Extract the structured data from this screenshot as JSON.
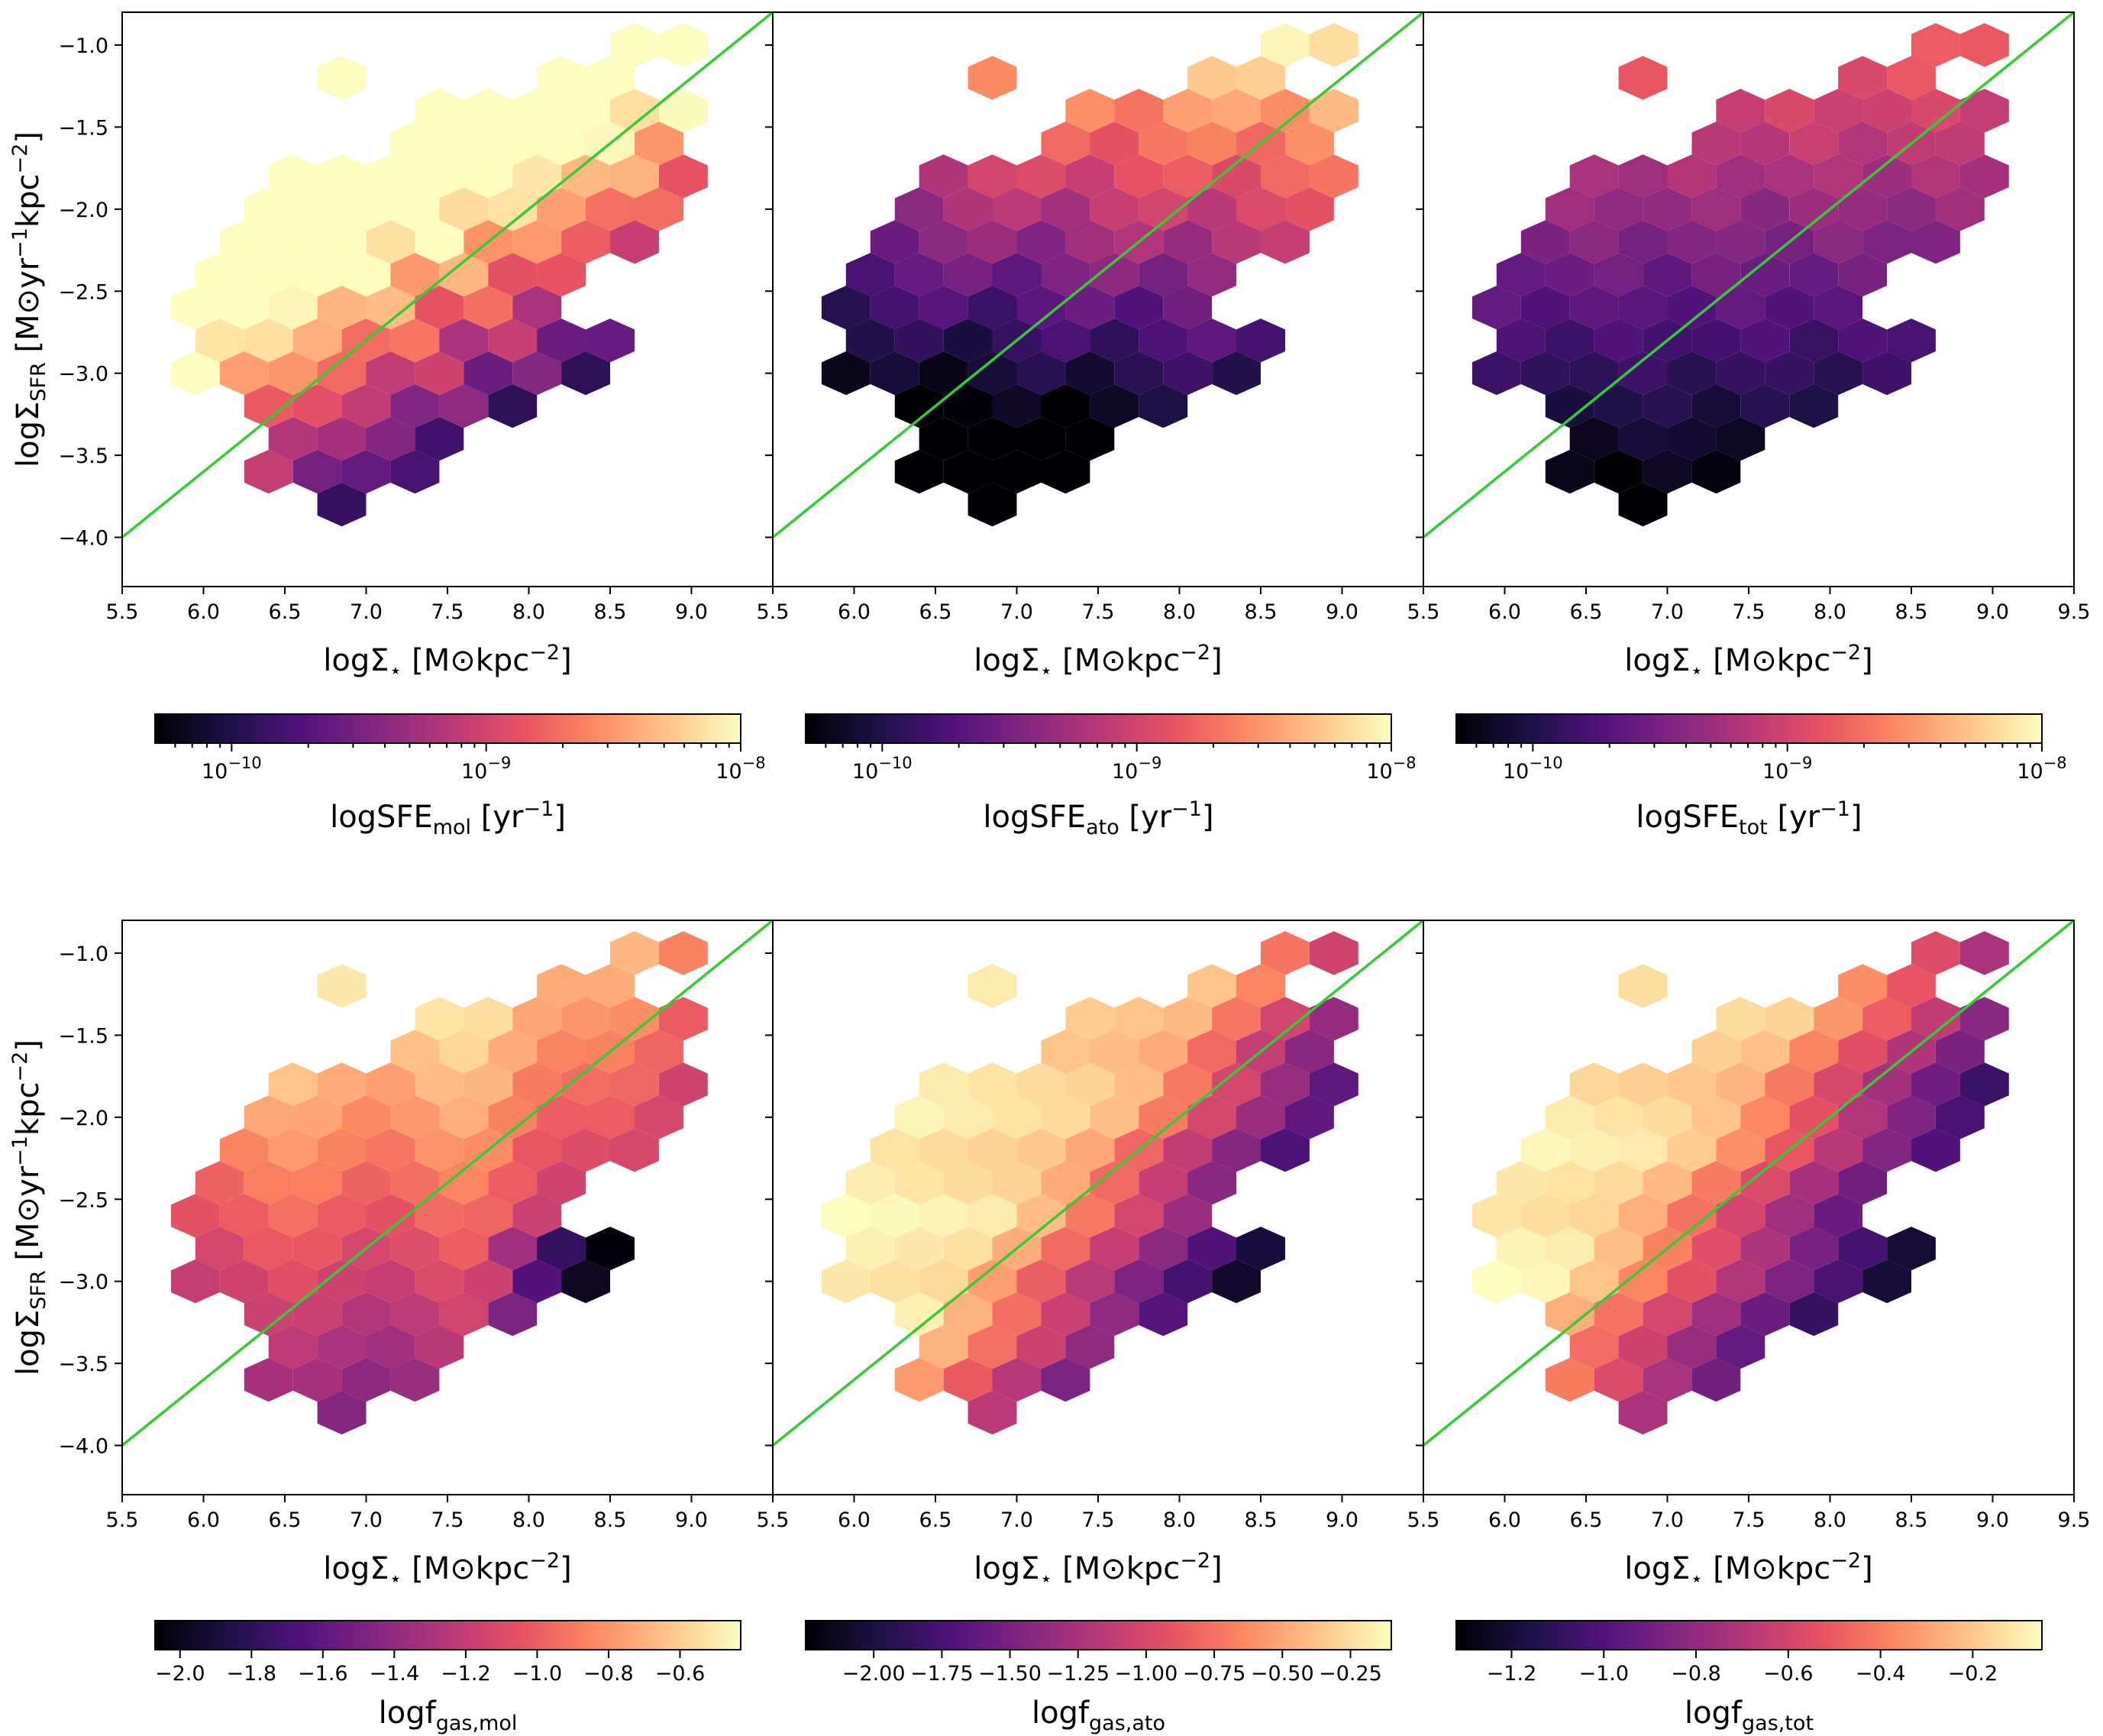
{
  "chart_data": [
    {
      "type": "heatmap",
      "subtype": "hexbin",
      "panel": "top-left",
      "xlabel": "logΣ⋆ [M⊙kpc−2]",
      "ylabel": "logΣSFR [M⊙yr−1kpc−2]",
      "xlim": [
        5.5,
        9.5
      ],
      "ylim": [
        -4.3,
        -0.8
      ],
      "xticks": [
        "5.5",
        "6.0",
        "6.5",
        "7.0",
        "7.5",
        "8.0",
        "8.5",
        "9.0"
      ],
      "yticks": [
        "−1.0",
        "−1.5",
        "−2.0",
        "−2.5",
        "−3.0",
        "−3.5",
        "−4.0"
      ],
      "line": {
        "x": [
          5.5,
          9.5
        ],
        "y": [
          -4.0,
          -0.8
        ],
        "color": "#33cc33"
      },
      "colorbar": {
        "label": "logSFEmol [yr−1]",
        "scale": "log",
        "range": [
          5e-11,
          1e-08
        ],
        "ticks": [
          "10−10",
          "10−9",
          "10−8"
        ]
      }
    },
    {
      "type": "heatmap",
      "subtype": "hexbin",
      "panel": "top-middle",
      "xlabel": "logΣ⋆ [M⊙kpc−2]",
      "xlim": [
        5.5,
        9.5
      ],
      "ylim": [
        -4.3,
        -0.8
      ],
      "xticks": [
        "5.5",
        "6.0",
        "6.5",
        "7.0",
        "7.5",
        "8.0",
        "8.5",
        "9.0"
      ],
      "line": {
        "x": [
          5.5,
          9.5
        ],
        "y": [
          -4.0,
          -0.8
        ],
        "color": "#33cc33"
      },
      "colorbar": {
        "label": "logSFEato [yr−1]",
        "scale": "log",
        "range": [
          5e-11,
          1e-08
        ],
        "ticks": [
          "10−10",
          "10−9",
          "10−8"
        ]
      }
    },
    {
      "type": "heatmap",
      "subtype": "hexbin",
      "panel": "top-right",
      "xlabel": "logΣ⋆ [M⊙kpc−2]",
      "xlim": [
        5.5,
        9.5
      ],
      "ylim": [
        -4.3,
        -0.8
      ],
      "xticks": [
        "5.5",
        "6.0",
        "6.5",
        "7.0",
        "7.5",
        "8.0",
        "8.5",
        "9.0",
        "9.5"
      ],
      "line": {
        "x": [
          5.5,
          9.5
        ],
        "y": [
          -4.0,
          -0.8
        ],
        "color": "#33cc33"
      },
      "colorbar": {
        "label": "logSFEtot [yr−1]",
        "scale": "log",
        "range": [
          5e-11,
          1e-08
        ],
        "ticks": [
          "10−10",
          "10−9",
          "10−8"
        ]
      }
    },
    {
      "type": "heatmap",
      "subtype": "hexbin",
      "panel": "bottom-left",
      "xlabel": "logΣ⋆ [M⊙kpc−2]",
      "ylabel": "logΣSFR [M⊙yr−1kpc−2]",
      "xlim": [
        5.5,
        9.5
      ],
      "ylim": [
        -4.3,
        -0.8
      ],
      "xticks": [
        "5.5",
        "6.0",
        "6.5",
        "7.0",
        "7.5",
        "8.0",
        "8.5",
        "9.0"
      ],
      "yticks": [
        "−1.0",
        "−1.5",
        "−2.0",
        "−2.5",
        "−3.0",
        "−3.5",
        "−4.0"
      ],
      "line": {
        "x": [
          5.5,
          9.5
        ],
        "y": [
          -4.0,
          -0.8
        ],
        "color": "#33cc33"
      },
      "colorbar": {
        "label": "logfgas,mol",
        "scale": "linear",
        "range": [
          -2.07,
          -0.43
        ],
        "ticks": [
          "−2.0",
          "−1.8",
          "−1.6",
          "−1.4",
          "−1.2",
          "−1.0",
          "−0.8",
          "−0.6"
        ]
      }
    },
    {
      "type": "heatmap",
      "subtype": "hexbin",
      "panel": "bottom-middle",
      "xlabel": "logΣ⋆ [M⊙kpc−2]",
      "xlim": [
        5.5,
        9.5
      ],
      "ylim": [
        -4.3,
        -0.8
      ],
      "xticks": [
        "5.5",
        "6.0",
        "6.5",
        "7.0",
        "7.5",
        "8.0",
        "8.5",
        "9.0"
      ],
      "line": {
        "x": [
          5.5,
          9.5
        ],
        "y": [
          -4.0,
          -0.8
        ],
        "color": "#33cc33"
      },
      "colorbar": {
        "label": "logfgas,ato",
        "scale": "linear",
        "range": [
          -2.25,
          -0.1
        ],
        "ticks": [
          "−2.00",
          "−1.75",
          "−1.50",
          "−1.25",
          "−1.00",
          "−0.75",
          "−0.50",
          "−0.25"
        ]
      }
    },
    {
      "type": "heatmap",
      "subtype": "hexbin",
      "panel": "bottom-right",
      "xlabel": "logΣ⋆ [M⊙kpc−2]",
      "xlim": [
        5.5,
        9.5
      ],
      "ylim": [
        -4.3,
        -0.8
      ],
      "xticks": [
        "5.5",
        "6.0",
        "6.5",
        "7.0",
        "7.5",
        "8.0",
        "8.5",
        "9.0",
        "9.5"
      ],
      "line": {
        "x": [
          5.5,
          9.5
        ],
        "y": [
          -4.0,
          -0.8
        ],
        "color": "#33cc33"
      },
      "colorbar": {
        "label": "logfgas,tot",
        "scale": "linear",
        "range": [
          -1.32,
          -0.05
        ],
        "ticks": [
          "−1.2",
          "−1.0",
          "−0.8",
          "−0.6",
          "−0.4",
          "−0.2"
        ]
      }
    }
  ],
  "hex_grid": {
    "hex_width": 0.3,
    "row_step": 0.2,
    "y_start": -3.8,
    "x_even_start": 6.85,
    "x_odd_start": 6.7,
    "rows": [
      {
        "y": -3.8,
        "x_min": 6.85,
        "x_max": 6.85
      },
      {
        "y": -3.6,
        "x_min": 6.4,
        "x_max": 7.3
      },
      {
        "y": -3.4,
        "x_min": 6.55,
        "x_max": 7.45
      },
      {
        "y": -3.2,
        "x_min": 6.4,
        "x_max": 7.9
      },
      {
        "y": -3.0,
        "x_min": 5.95,
        "x_max": 8.35
      },
      {
        "y": -2.8,
        "x_min": 6.1,
        "x_max": 8.5
      },
      {
        "y": -2.6,
        "x_min": 5.95,
        "x_max": 8.05
      },
      {
        "y": -2.4,
        "x_min": 6.1,
        "x_max": 8.2
      },
      {
        "y": -2.2,
        "x_min": 6.25,
        "x_max": 8.65
      },
      {
        "y": -2.0,
        "x_min": 6.4,
        "x_max": 8.8
      },
      {
        "y": -1.8,
        "x_min": 6.55,
        "x_max": 8.95
      },
      {
        "y": -1.6,
        "x_min": 7.3,
        "x_max": 8.8
      },
      {
        "y": -1.4,
        "x_min": 7.45,
        "x_max": 8.95
      },
      {
        "y": -1.2,
        "x_min": 8.2,
        "x_max": 8.5
      },
      {
        "y": -1.0,
        "x_min": 8.65,
        "x_max": 8.95
      }
    ],
    "isolated": [
      {
        "x": 6.85,
        "y": -1.2
      }
    ]
  },
  "colormap_stops": [
    "#000004",
    "#1d1147",
    "#51127c",
    "#822681",
    "#b73779",
    "#e75263",
    "#fc8961",
    "#fec488",
    "#fcfdbf"
  ]
}
